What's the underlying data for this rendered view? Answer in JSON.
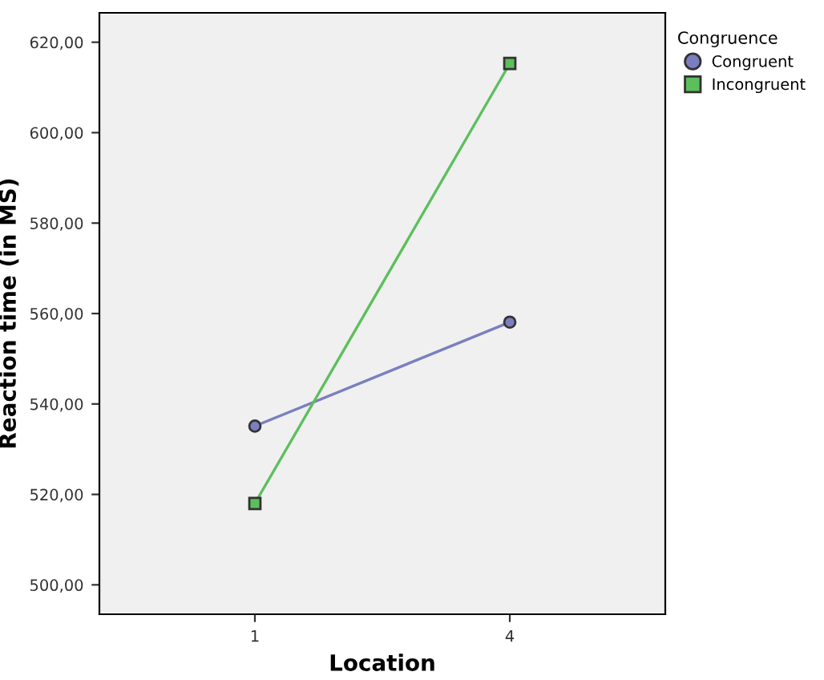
{
  "chart_data": {
    "type": "line",
    "xlabel": "Location",
    "ylabel": "Reaction time (in MS)",
    "legend_title": "Congruence",
    "legend": "right",
    "categories": [
      "1",
      "4"
    ],
    "series": [
      {
        "name": "Congruent",
        "color": "#7b7fc0",
        "marker": "circle",
        "values": [
          535.1,
          558.1
        ]
      },
      {
        "name": "Incongruent",
        "color": "#5cbf5c",
        "marker": "square",
        "values": [
          518.0,
          615.3
        ]
      }
    ],
    "ylim": [
      493.5,
      626.5
    ],
    "yticks": [
      {
        "value": 500,
        "label": "500,00"
      },
      {
        "value": 520,
        "label": "520,00"
      },
      {
        "value": 540,
        "label": "540,00"
      },
      {
        "value": 560,
        "label": "560,00"
      },
      {
        "value": 580,
        "label": "580,00"
      },
      {
        "value": 600,
        "label": "600,00"
      },
      {
        "value": 620,
        "label": "620,00"
      }
    ],
    "grid": false
  }
}
